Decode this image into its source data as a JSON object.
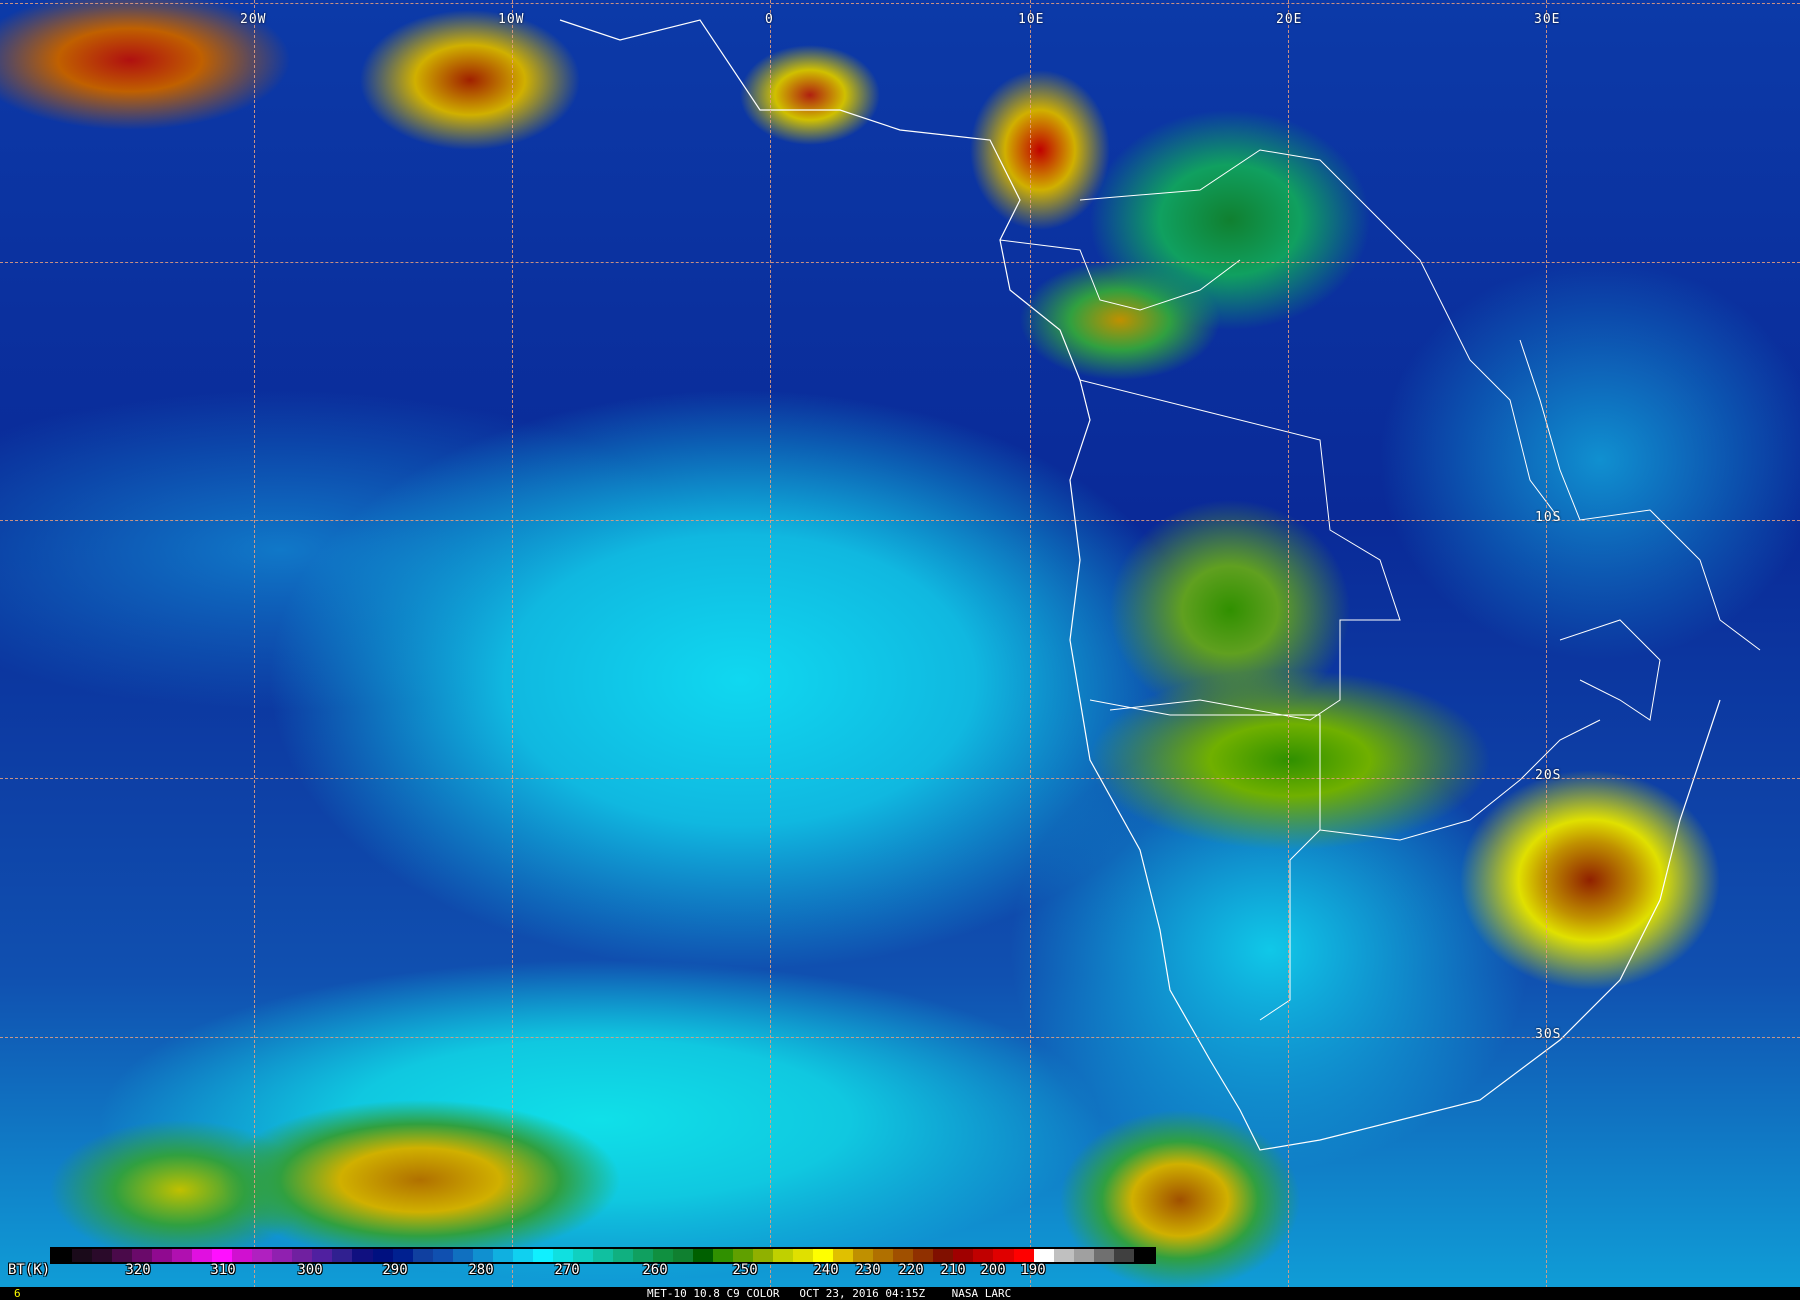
{
  "map": {
    "lon_labels": [
      "20W",
      "10W",
      "0",
      "10E",
      "20E",
      "30E"
    ],
    "lat_labels": [
      "10S",
      "20S",
      "30S"
    ],
    "grid_color": "#e8a080",
    "border_color": "#ffffff"
  },
  "colorbar": {
    "unit_label": "BT(K)",
    "ticks": [
      "320",
      "310",
      "300",
      "290",
      "280",
      "270",
      "260",
      "250",
      "240",
      "230",
      "220",
      "210",
      "200",
      "190"
    ],
    "colors": [
      "#000000",
      "#1a0a1a",
      "#2a0a2a",
      "#4a0a4a",
      "#6a0a6a",
      "#900a90",
      "#b010b0",
      "#e010e0",
      "#ff10ff",
      "#d010d0",
      "#b020c0",
      "#9020b0",
      "#7020a0",
      "#5020a0",
      "#302090",
      "#101080",
      "#001080",
      "#002090",
      "#1040a0",
      "#1050b0",
      "#1070c0",
      "#1090d0",
      "#10b0e0",
      "#10d0f0",
      "#10f0ff",
      "#10e0e0",
      "#10d0c0",
      "#10c0a0",
      "#10b080",
      "#10a060",
      "#109040",
      "#108030",
      "#006000",
      "#309000",
      "#60a000",
      "#90b000",
      "#c0d000",
      "#e0e000",
      "#ffff00",
      "#e0c000",
      "#c09000",
      "#b07000",
      "#a05000",
      "#903000",
      "#801000",
      "#a00000",
      "#c00000",
      "#e00000",
      "#ff0000",
      "#ffffff",
      "#c0c0c0",
      "#a0a0a0",
      "#707070",
      "#404040",
      "#000000"
    ]
  },
  "footer": {
    "frame": "6",
    "caption": "MET-10 10.8 C9 COLOR   OCT 23, 2016 04:15Z    NASA LARC"
  }
}
